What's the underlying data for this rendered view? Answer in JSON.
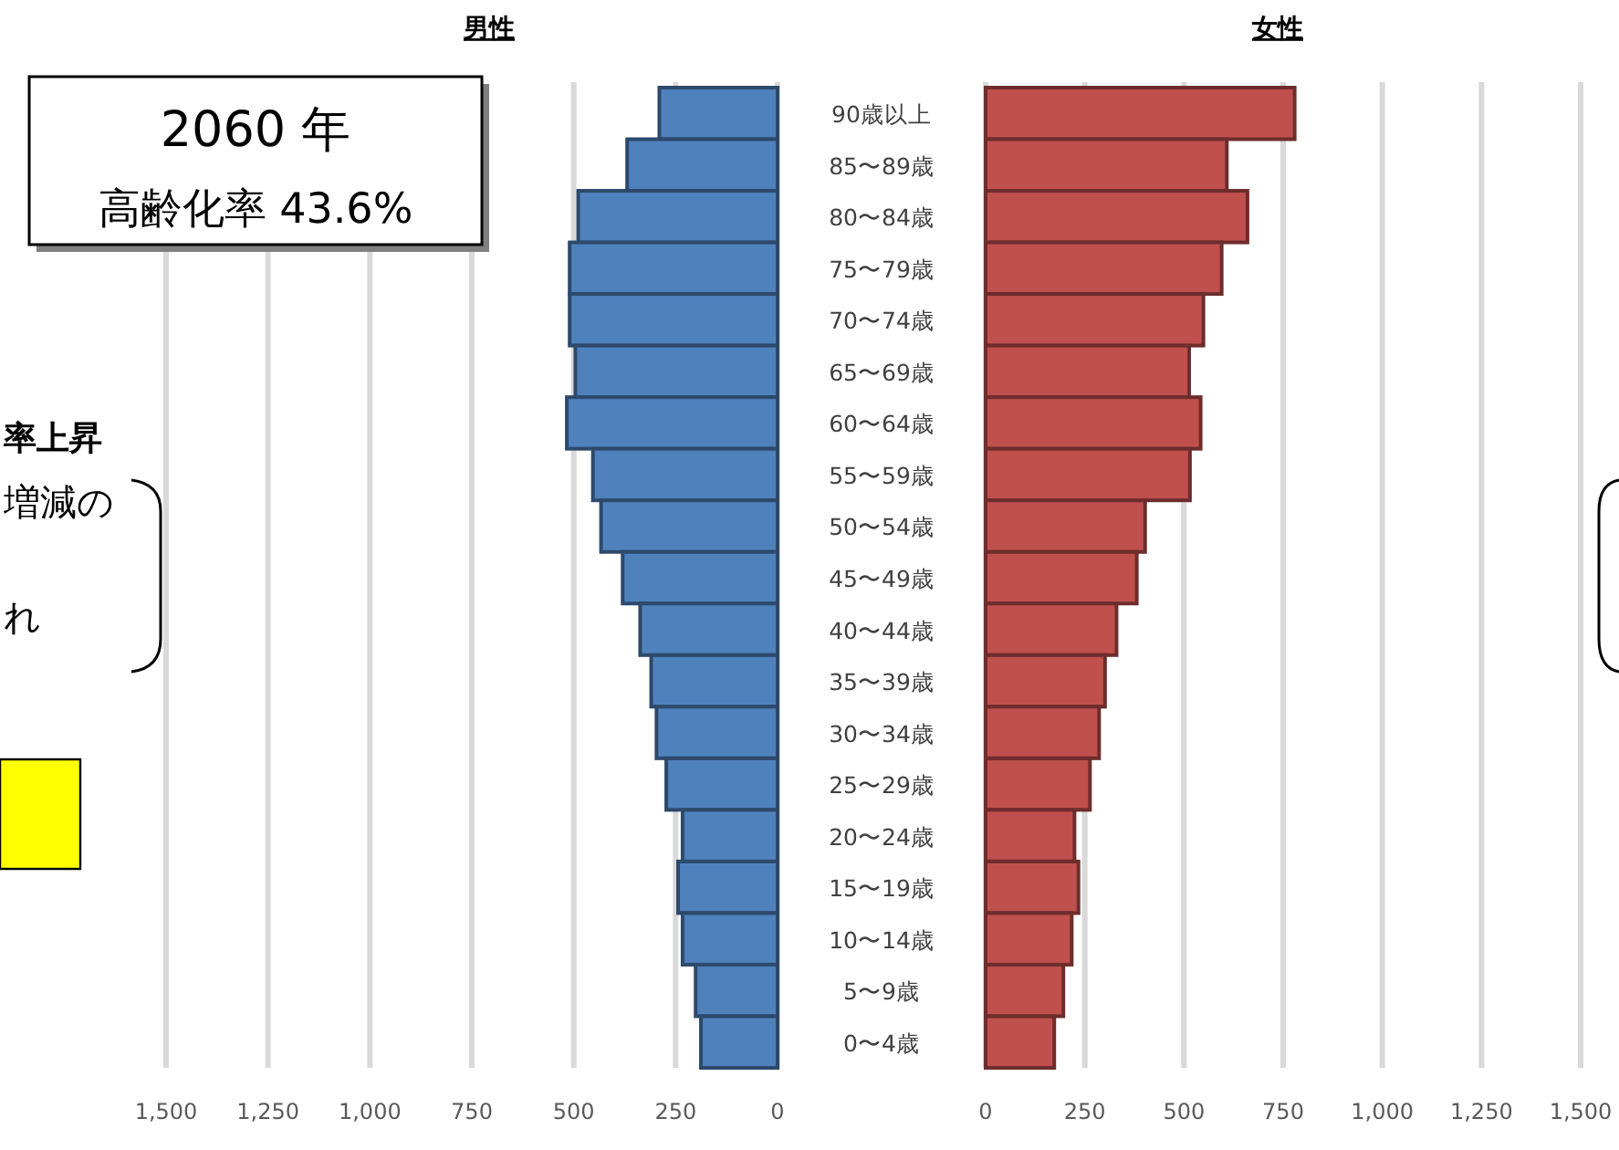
{
  "chart_data": [
    {
      "type": "bar",
      "orientation": "horizontal",
      "title": "男性",
      "categories": [
        "90歳以上",
        "85〜89歳",
        "80〜84歳",
        "75〜79歳",
        "70〜74歳",
        "65〜69歳",
        "60〜64歳",
        "55〜59歳",
        "50〜54歳",
        "45〜49歳",
        "40〜44歳",
        "35〜39歳",
        "30〜34歳",
        "25〜29歳",
        "20〜24歳",
        "15〜19歳",
        "10〜14歳",
        "5〜9歳",
        "0〜4歳"
      ],
      "series": [
        {
          "color": "#4f81bd",
          "values": [
            290,
            369,
            489,
            510,
            510,
            496,
            517,
            453,
            433,
            380,
            337,
            310,
            297,
            273,
            233,
            244,
            233,
            201,
            188
          ]
        }
      ],
      "xlim": [
        1500,
        0
      ],
      "xticks": [
        {
          "value": 1500,
          "label": "1,500"
        },
        {
          "value": 1250,
          "label": "1,250"
        },
        {
          "value": 1000,
          "label": "1,000"
        },
        750,
        500,
        250,
        0
      ],
      "grid": "x",
      "annotations": [
        "2060 年",
        "高齢化率 43.6%",
        "率上昇",
        "増減の",
        "れ"
      ]
    },
    {
      "type": "bar",
      "orientation": "horizontal",
      "title": "女性",
      "categories": [
        "90歳以上",
        "85〜89歳",
        "80〜84歳",
        "75〜79歳",
        "70〜74歳",
        "65〜69歳",
        "60〜64歳",
        "55〜59歳",
        "50〜54歳",
        "45〜49歳",
        "40〜44歳",
        "35〜39歳",
        "30〜34歳",
        "25〜29歳",
        "20〜24歳",
        "15〜19歳",
        "10〜14歳",
        "5〜9歳",
        "0〜4歳"
      ],
      "series": [
        {
          "color": "#c0504d",
          "values": [
            779,
            608,
            660,
            595,
            549,
            513,
            542,
            515,
            402,
            381,
            330,
            301,
            286,
            263,
            224,
            234,
            217,
            196,
            173
          ]
        }
      ],
      "xlim": [
        0,
        1500
      ],
      "xticks": [
        0,
        250,
        500,
        750,
        {
          "value": 1000,
          "label": "1,000"
        },
        {
          "value": 1250,
          "label": "1,250"
        },
        {
          "value": 1500,
          "label": "1,500"
        }
      ],
      "grid": "x",
      "tick_labels": "x"
    }
  ]
}
